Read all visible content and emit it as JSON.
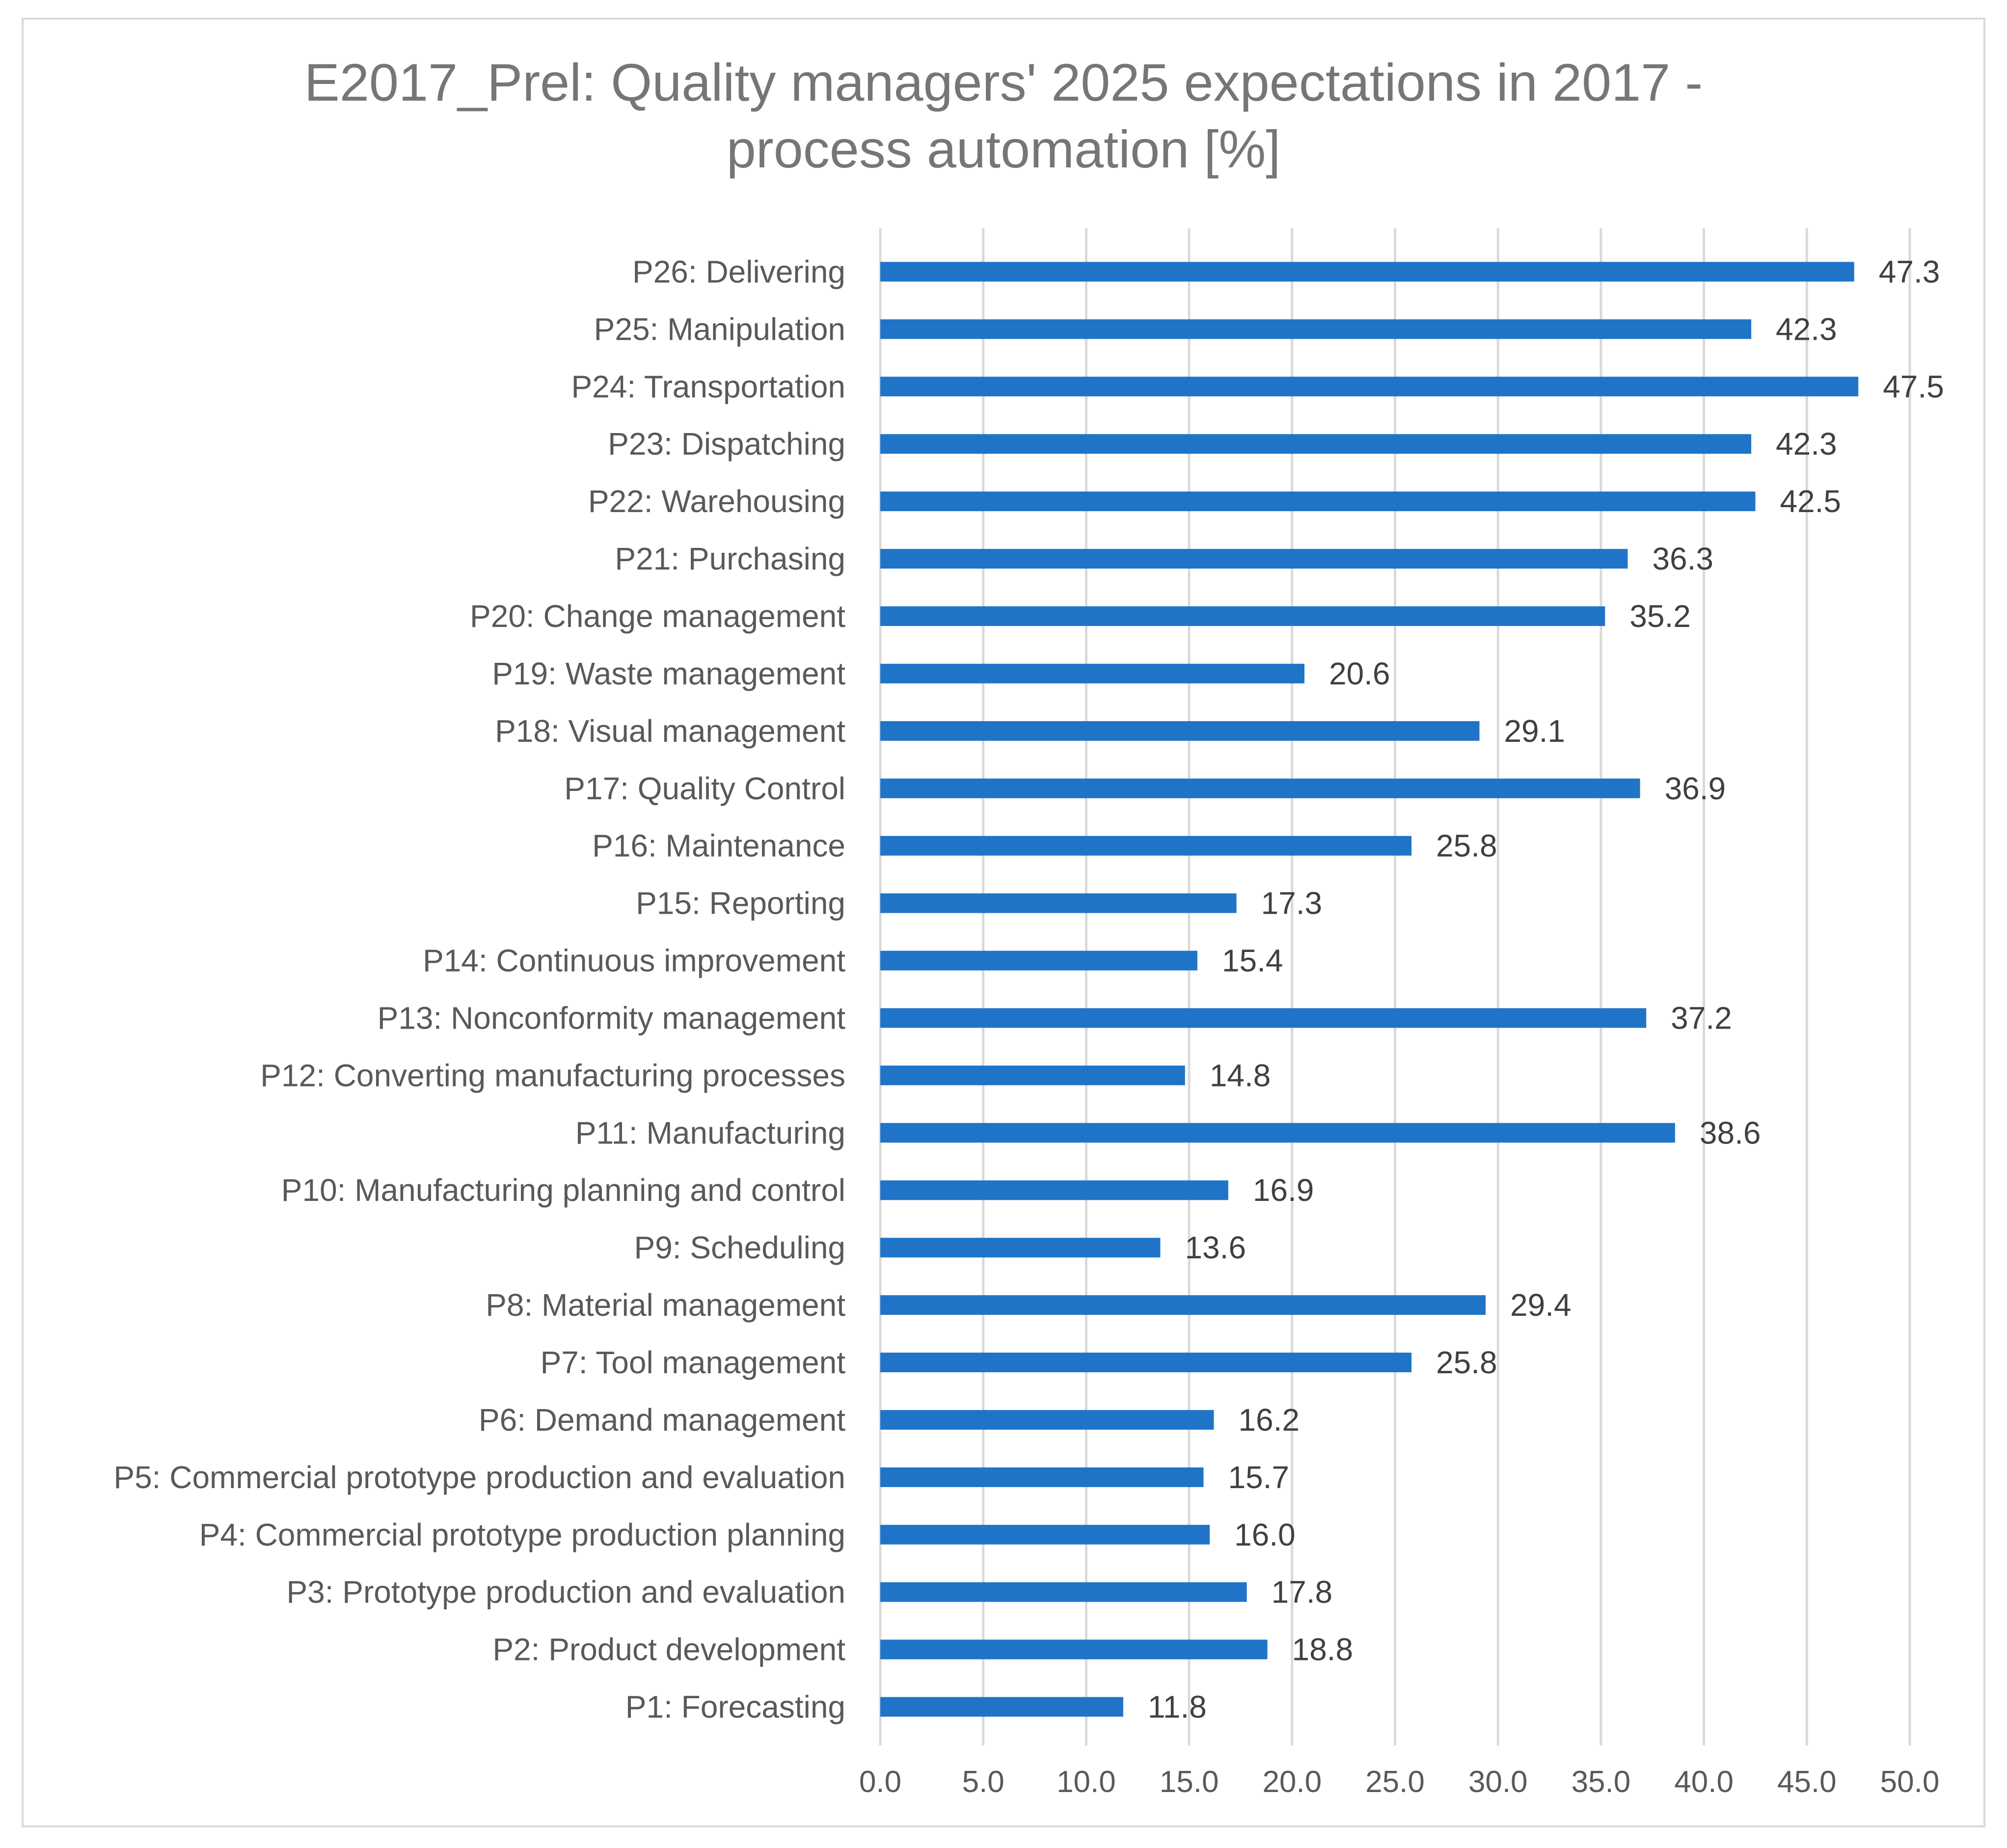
{
  "chart_data": {
    "type": "bar",
    "orientation": "horizontal",
    "title_lines": [
      "E2017_Prel: Quality managers' 2025 expectations in 2017 -",
      "process automation [%]"
    ],
    "categories": [
      "P1: Forecasting",
      "P2: Product development",
      "P3: Prototype production and evaluation",
      "P4: Commercial prototype production planning",
      "P5: Commercial prototype production and evaluation",
      "P6: Demand management",
      "P7: Tool management",
      "P8: Material management",
      "P9: Scheduling",
      "P10: Manufacturing planning and control",
      "P11: Manufacturing",
      "P12: Converting manufacturing processes",
      "P13: Nonconformity management",
      "P14: Continuous improvement",
      "P15: Reporting",
      "P16: Maintenance",
      "P17: Quality Control",
      "P18: Visual management",
      "P19: Waste management",
      "P20: Change management",
      "P21: Purchasing",
      "P22: Warehousing",
      "P23: Dispatching",
      "P24: Transportation",
      "P25: Manipulation",
      "P26: Delivering"
    ],
    "values": [
      11.8,
      18.8,
      17.8,
      16.0,
      15.7,
      16.2,
      25.8,
      29.4,
      13.6,
      16.9,
      38.6,
      14.8,
      37.2,
      15.4,
      17.3,
      25.8,
      36.9,
      29.1,
      20.6,
      35.2,
      36.3,
      42.5,
      42.3,
      47.5,
      42.3,
      47.3
    ],
    "value_labels": [
      "11.8",
      "18.8",
      "17.8",
      "16.0",
      "15.7",
      "16.2",
      "25.8",
      "29.4",
      "13.6",
      "16.9",
      "38.6",
      "14.8",
      "37.2",
      "15.4",
      "17.3",
      "25.8",
      "36.9",
      "29.1",
      "20.6",
      "35.2",
      "36.3",
      "42.5",
      "42.3",
      "47.5",
      "42.3",
      "47.3"
    ],
    "xlim": [
      0,
      50
    ],
    "x_ticks": [
      0,
      5,
      10,
      15,
      20,
      25,
      30,
      35,
      40,
      45,
      50
    ],
    "x_tick_labels": [
      "0.0",
      "5.0",
      "10.0",
      "15.0",
      "20.0",
      "25.0",
      "30.0",
      "35.0",
      "40.0",
      "45.0",
      "50.0"
    ],
    "xlabel": "",
    "ylabel": "",
    "grid": "vertical",
    "legend": "none",
    "colors": {
      "bar": "#1f74c8",
      "grid": "#d9d9d9",
      "text": "#595959",
      "title": "#767676"
    }
  }
}
